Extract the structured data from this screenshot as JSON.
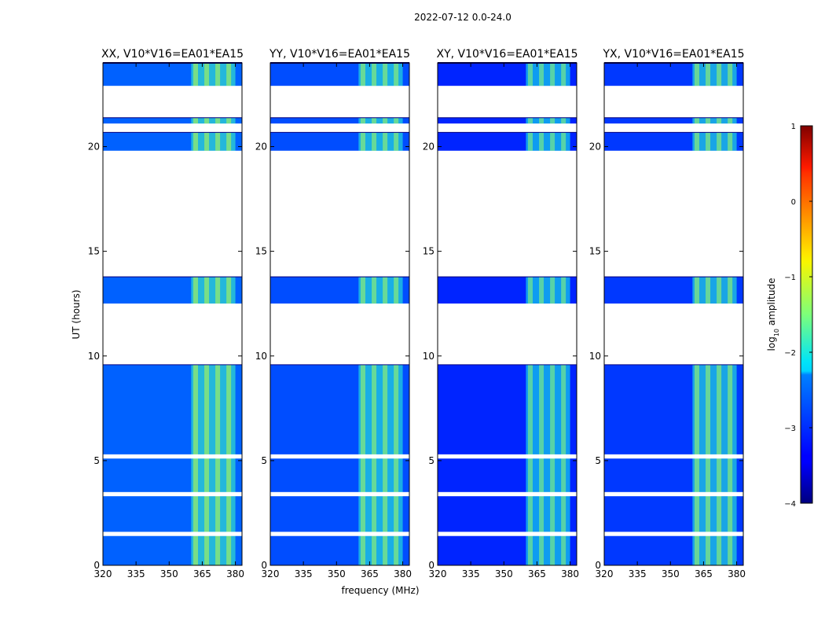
{
  "figure_title": "2022-07-12 0.0-24.0",
  "shared_xlabel": "frequency (MHz)",
  "shared_ylabel": "UT (hours)",
  "colorbar": {
    "label": "log10 amplitude",
    "label_base": "log",
    "label_sub": "10",
    "label_rest": " amplitude",
    "range": [
      -4,
      1
    ],
    "ticks": [
      1,
      0,
      -1,
      -2,
      -3,
      -4
    ],
    "colormap": "jet"
  },
  "chart_data": [
    {
      "type": "heatmap",
      "title": "XX, V10*V16=EA01*EA15",
      "xlabel": "frequency (MHz)",
      "ylabel": "UT (hours)",
      "xlim": [
        320,
        383
      ],
      "ylim": [
        0,
        24
      ],
      "xticks": [
        320,
        335,
        350,
        365,
        380
      ],
      "yticks": [
        0,
        5,
        10,
        15,
        20
      ],
      "background_log_amplitude": -2.9,
      "bright_band_MHz": [
        360,
        380
      ],
      "bright_band_log_amplitude": -1.8,
      "rfi_channels_MHz": [
        362,
        367,
        372,
        377
      ],
      "data_spans_UT": [
        [
          0.0,
          9.6
        ],
        [
          12.5,
          13.8
        ],
        [
          19.8,
          20.7
        ],
        [
          21.1,
          21.4
        ],
        [
          22.9,
          24.0
        ]
      ],
      "flagged_spans_UT": [
        [
          1.4,
          1.6
        ],
        [
          3.3,
          3.5
        ],
        [
          5.1,
          5.3
        ],
        [
          9.6,
          12.5
        ],
        [
          13.8,
          19.8
        ],
        [
          20.7,
          21.1
        ],
        [
          21.4,
          22.9
        ]
      ]
    },
    {
      "type": "heatmap",
      "title": "YY, V10*V16=EA01*EA15",
      "xlabel": "frequency (MHz)",
      "ylabel": "UT (hours)",
      "xlim": [
        320,
        383
      ],
      "ylim": [
        0,
        24
      ],
      "xticks": [
        320,
        335,
        350,
        365,
        380
      ],
      "yticks": [
        0,
        5,
        10,
        15,
        20
      ],
      "background_log_amplitude": -3.0,
      "bright_band_MHz": [
        360,
        380
      ],
      "bright_band_log_amplitude": -1.9,
      "rfi_channels_MHz": [
        362,
        367,
        372,
        377
      ],
      "data_spans_UT": [
        [
          0.0,
          9.6
        ],
        [
          12.5,
          13.8
        ],
        [
          19.8,
          20.7
        ],
        [
          21.1,
          21.4
        ],
        [
          22.9,
          24.0
        ]
      ],
      "flagged_spans_UT": [
        [
          1.4,
          1.6
        ],
        [
          3.3,
          3.5
        ],
        [
          5.1,
          5.3
        ],
        [
          9.6,
          12.5
        ],
        [
          13.8,
          19.8
        ],
        [
          20.7,
          21.1
        ],
        [
          21.4,
          22.9
        ]
      ]
    },
    {
      "type": "heatmap",
      "title": "XY, V10*V16=EA01*EA15",
      "xlabel": "frequency (MHz)",
      "ylabel": "UT (hours)",
      "xlim": [
        320,
        383
      ],
      "ylim": [
        0,
        24
      ],
      "xticks": [
        320,
        335,
        350,
        365,
        380
      ],
      "yticks": [
        0,
        5,
        10,
        15,
        20
      ],
      "background_log_amplitude": -3.2,
      "bright_band_MHz": [
        360,
        380
      ],
      "bright_band_log_amplitude": -2.0,
      "rfi_channels_MHz": [
        362,
        367,
        372,
        377
      ],
      "data_spans_UT": [
        [
          0.0,
          9.6
        ],
        [
          12.5,
          13.8
        ],
        [
          19.8,
          20.7
        ],
        [
          21.1,
          21.4
        ],
        [
          22.9,
          24.0
        ]
      ],
      "flagged_spans_UT": [
        [
          1.4,
          1.6
        ],
        [
          3.3,
          3.5
        ],
        [
          5.1,
          5.3
        ],
        [
          9.6,
          12.5
        ],
        [
          13.8,
          19.8
        ],
        [
          20.7,
          21.1
        ],
        [
          21.4,
          22.9
        ]
      ]
    },
    {
      "type": "heatmap",
      "title": "YX, V10*V16=EA01*EA15",
      "xlabel": "frequency (MHz)",
      "ylabel": "UT (hours)",
      "xlim": [
        320,
        383
      ],
      "ylim": [
        0,
        24
      ],
      "xticks": [
        320,
        335,
        350,
        365,
        380
      ],
      "yticks": [
        0,
        5,
        10,
        15,
        20
      ],
      "background_log_amplitude": -3.1,
      "bright_band_MHz": [
        360,
        380
      ],
      "bright_band_log_amplitude": -1.9,
      "rfi_channels_MHz": [
        362,
        367,
        372,
        377
      ],
      "data_spans_UT": [
        [
          0.0,
          9.6
        ],
        [
          12.5,
          13.8
        ],
        [
          19.8,
          20.7
        ],
        [
          21.1,
          21.4
        ],
        [
          22.9,
          24.0
        ]
      ],
      "flagged_spans_UT": [
        [
          1.4,
          1.6
        ],
        [
          3.3,
          3.5
        ],
        [
          5.1,
          5.3
        ],
        [
          9.6,
          12.5
        ],
        [
          13.8,
          19.8
        ],
        [
          20.7,
          21.1
        ],
        [
          21.4,
          22.9
        ]
      ]
    }
  ]
}
